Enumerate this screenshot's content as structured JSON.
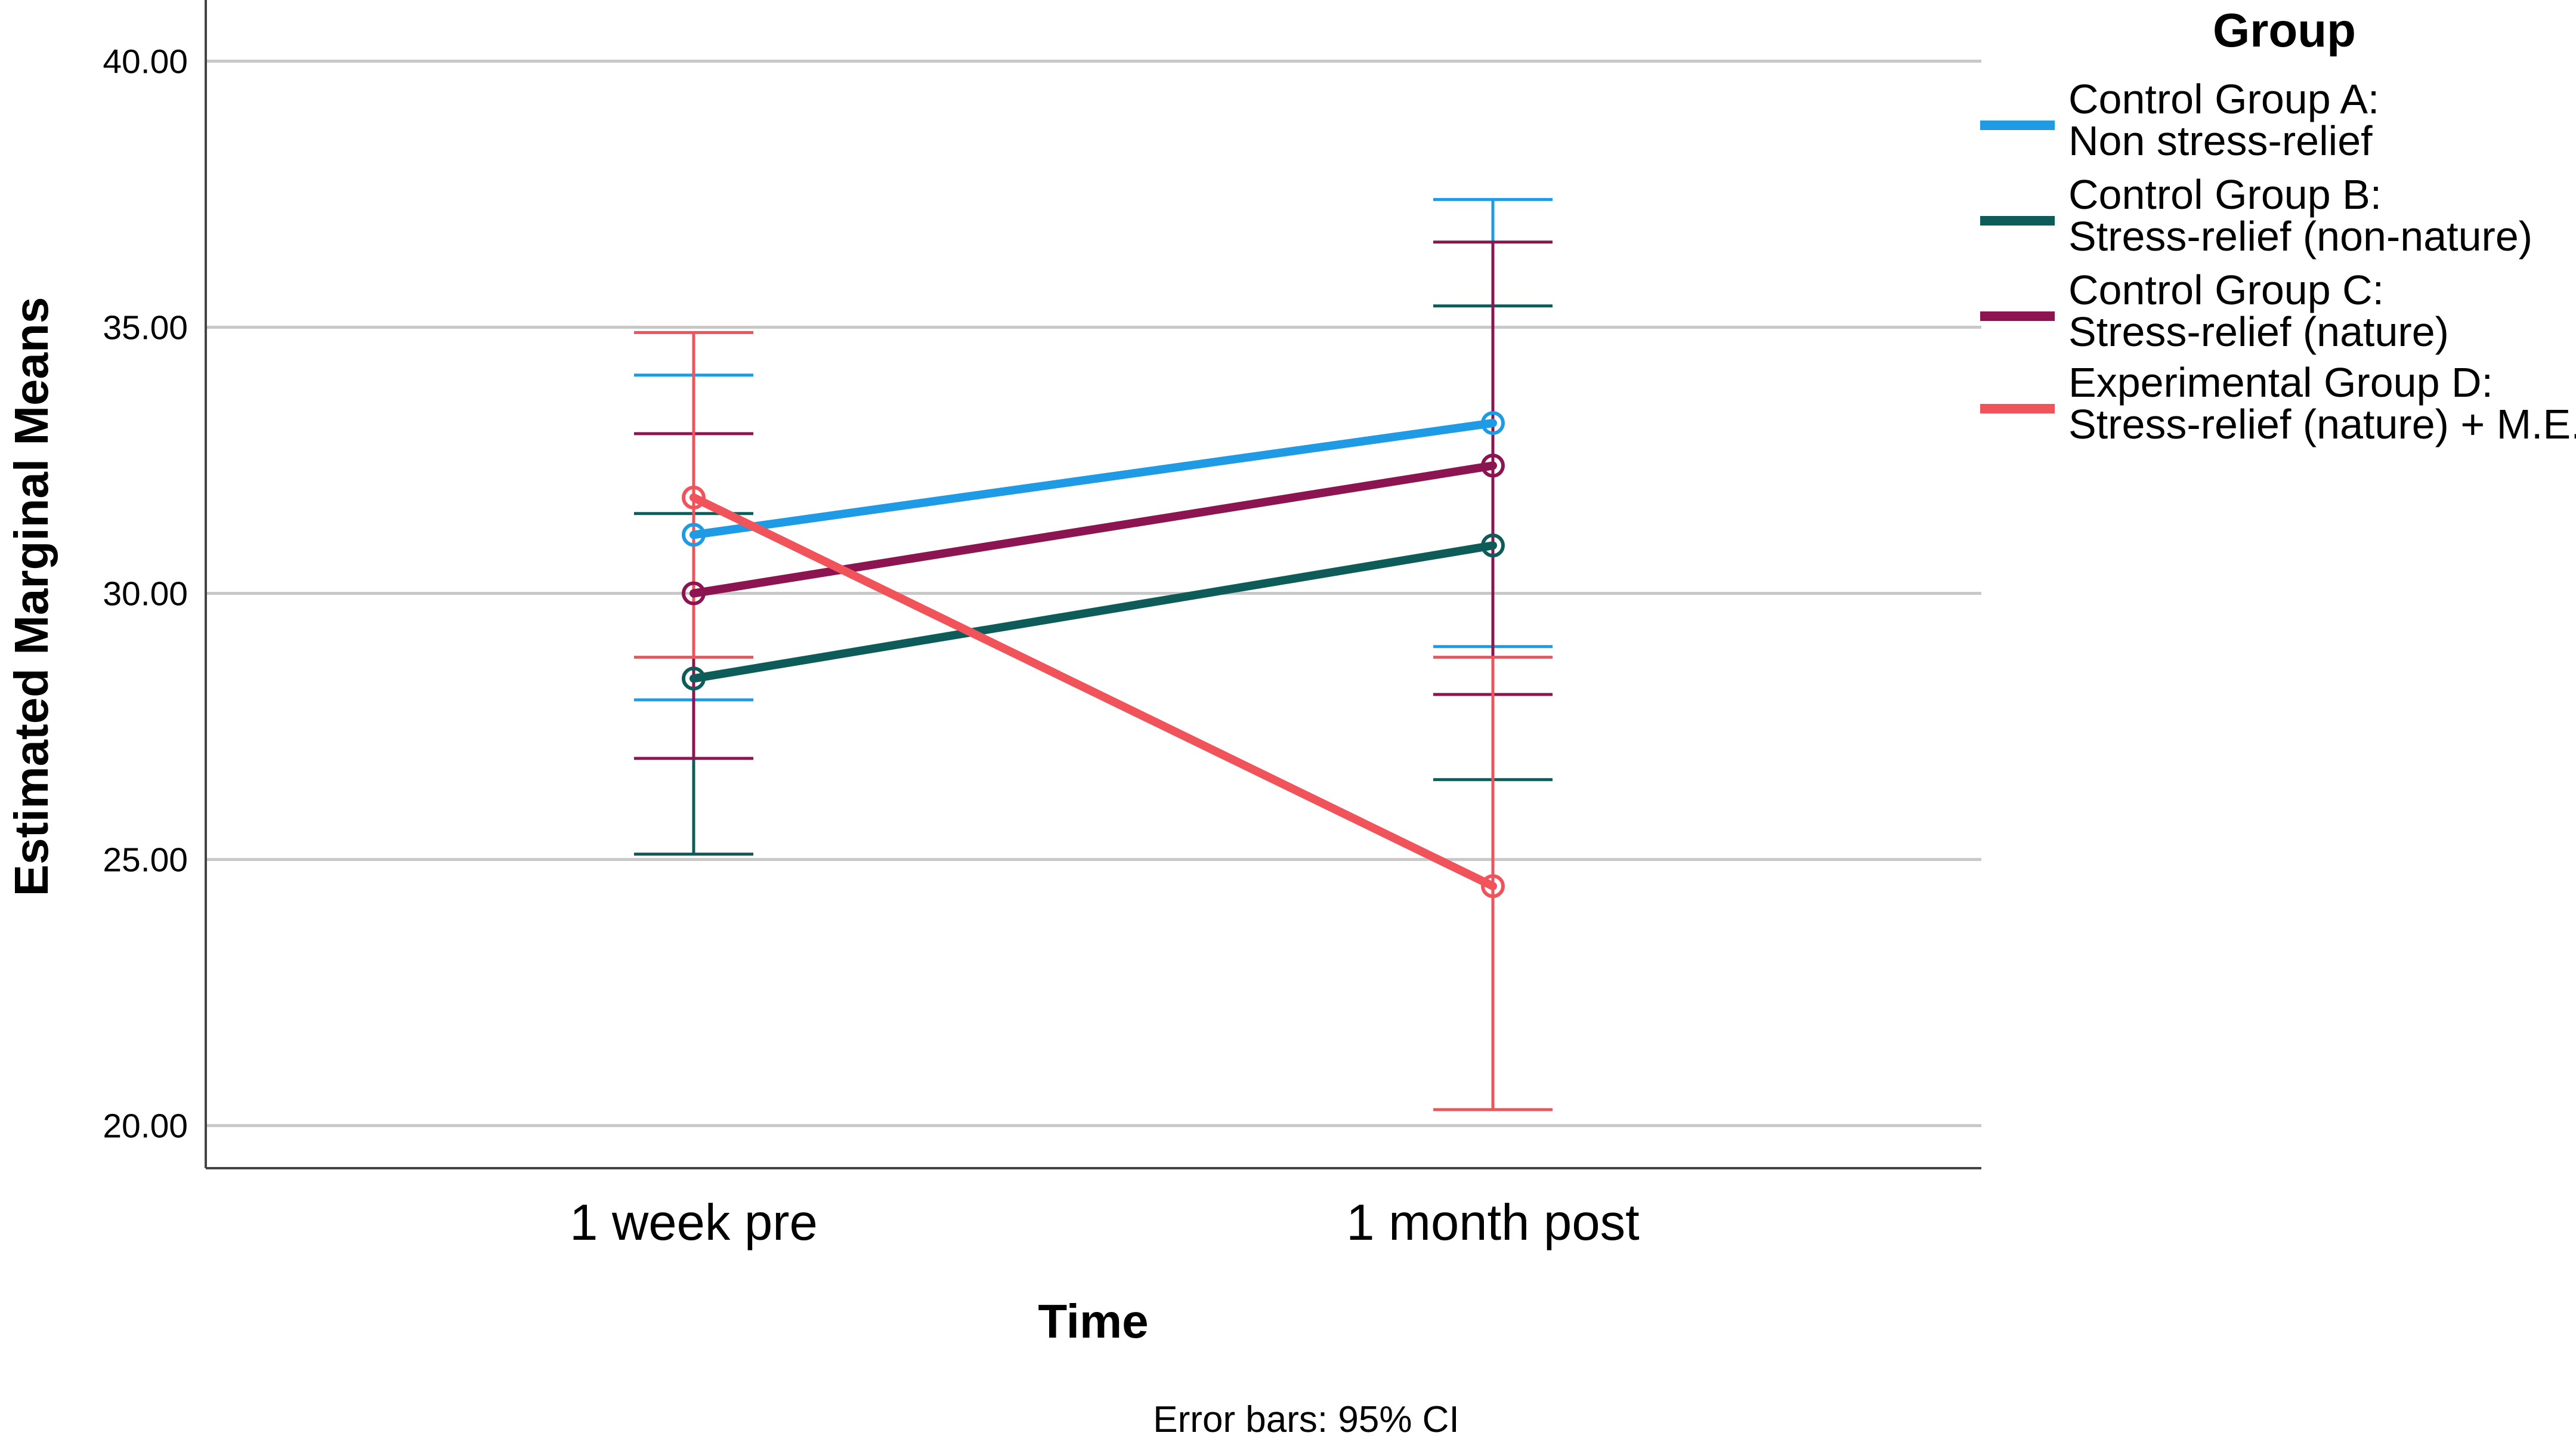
{
  "chart_data": {
    "type": "line",
    "title": "",
    "xlabel": "Time",
    "ylabel": "Estimated Marginal Means",
    "categories": [
      "1 week pre",
      "1 month post"
    ],
    "ylim": [
      19.2,
      40.7
    ],
    "yticks": [
      "20.00",
      "25.00",
      "30.00",
      "35.00",
      "40.00"
    ],
    "ytick_values": [
      20,
      25,
      30,
      35,
      40
    ],
    "grid": true,
    "legend_title": "Group",
    "legend_position": "top-right",
    "footnote": "Error bars: 95% CI",
    "series": [
      {
        "name_lines": [
          "Control Group A:",
          " Non stress-relief"
        ],
        "color": "#1f9be6",
        "values": [
          31.1,
          33.2
        ],
        "ci_low": [
          28.0,
          29.0
        ],
        "ci_high": [
          34.1,
          37.4
        ]
      },
      {
        "name_lines": [
          "Control Group B:",
          "Stress-relief (non-nature)"
        ],
        "color": "#0e5c5a",
        "values": [
          28.4,
          30.9
        ],
        "ci_low": [
          25.1,
          26.5
        ],
        "ci_high": [
          31.5,
          35.4
        ]
      },
      {
        "name_lines": [
          "Control Group C:",
          "Stress-relief (nature)"
        ],
        "color": "#8c1450",
        "values": [
          30.0,
          32.4
        ],
        "ci_low": [
          26.9,
          28.1
        ],
        "ci_high": [
          33.0,
          36.6
        ]
      },
      {
        "name_lines": [
          "Experimental Group D:",
          "Stress-relief (nature) + M.E."
        ],
        "color": "#f0545a",
        "values": [
          31.8,
          24.5
        ],
        "ci_low": [
          28.8,
          20.3
        ],
        "ci_high": [
          34.9,
          28.8
        ]
      }
    ]
  }
}
